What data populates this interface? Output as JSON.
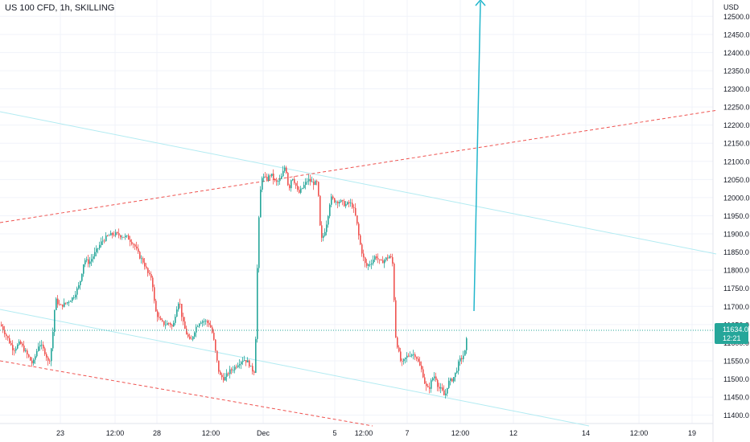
{
  "header": {
    "symbol_title": "US 100 CFD, 1h, SKILLING"
  },
  "price_axis": {
    "currency": "USD",
    "ticks": [
      "12500.0",
      "12450.0",
      "12400.0",
      "12350.0",
      "12300.0",
      "12250.0",
      "12200.0",
      "12150.0",
      "12100.0",
      "12050.0",
      "12000.0",
      "11950.0",
      "11900.0",
      "11850.0",
      "11800.0",
      "11750.0",
      "11700.0",
      "11650.0",
      "11600.0",
      "11550.0",
      "11500.0",
      "11450.0",
      "11400.0"
    ],
    "last_price_label": "11634.0",
    "countdown_label": "12:21"
  },
  "time_axis": {
    "ticks": [
      "23",
      "12:00",
      "28",
      "12:00",
      "Dec",
      "5",
      "12:00",
      "7",
      "12:00",
      "12",
      "14",
      "12:00",
      "19"
    ]
  },
  "colors": {
    "up": "#26a69a",
    "down": "#ef5350",
    "channel": "#b2ebf2",
    "dashed": "#ef5350",
    "arrow": "#22b6cc",
    "last_price": "#26a69a"
  },
  "chart_data": {
    "type": "candlestick",
    "title": "US 100 CFD, 1h, SKILLING",
    "ylabel": "USD",
    "ylim": [
      11377,
      12545
    ],
    "last_price": 11634.0,
    "close_path": [
      [
        0,
        11650
      ],
      [
        8,
        11615
      ],
      [
        16,
        11580
      ],
      [
        24,
        11600
      ],
      [
        32,
        11570
      ],
      [
        40,
        11540
      ],
      [
        48,
        11600
      ],
      [
        56,
        11570
      ],
      [
        60,
        11540
      ],
      [
        64,
        11600
      ],
      [
        68,
        11720
      ],
      [
        74,
        11700
      ],
      [
        82,
        11710
      ],
      [
        90,
        11725
      ],
      [
        98,
        11760
      ],
      [
        104,
        11830
      ],
      [
        110,
        11820
      ],
      [
        118,
        11850
      ],
      [
        126,
        11880
      ],
      [
        134,
        11895
      ],
      [
        142,
        11900
      ],
      [
        150,
        11895
      ],
      [
        158,
        11890
      ],
      [
        166,
        11870
      ],
      [
        172,
        11840
      ],
      [
        178,
        11820
      ],
      [
        184,
        11785
      ],
      [
        188,
        11780
      ],
      [
        192,
        11690
      ],
      [
        198,
        11660
      ],
      [
        204,
        11650
      ],
      [
        210,
        11655
      ],
      [
        214,
        11640
      ],
      [
        218,
        11690
      ],
      [
        222,
        11720
      ],
      [
        226,
        11660
      ],
      [
        230,
        11630
      ],
      [
        236,
        11600
      ],
      [
        242,
        11640
      ],
      [
        248,
        11660
      ],
      [
        254,
        11660
      ],
      [
        260,
        11650
      ],
      [
        264,
        11620
      ],
      [
        268,
        11560
      ],
      [
        272,
        11510
      ],
      [
        278,
        11500
      ],
      [
        284,
        11520
      ],
      [
        290,
        11530
      ],
      [
        296,
        11545
      ],
      [
        302,
        11555
      ],
      [
        308,
        11545
      ],
      [
        312,
        11525
      ],
      [
        316,
        11520
      ],
      [
        320,
        11900
      ],
      [
        324,
        12060
      ],
      [
        330,
        12050
      ],
      [
        336,
        12065
      ],
      [
        342,
        12040
      ],
      [
        348,
        12050
      ],
      [
        354,
        12090
      ],
      [
        358,
        12020
      ],
      [
        362,
        12060
      ],
      [
        366,
        12040
      ],
      [
        370,
        12010
      ],
      [
        376,
        12030
      ],
      [
        382,
        12050
      ],
      [
        388,
        12040
      ],
      [
        394,
        12040
      ],
      [
        398,
        11880
      ],
      [
        402,
        11900
      ],
      [
        406,
        11940
      ],
      [
        410,
        12000
      ],
      [
        416,
        11990
      ],
      [
        422,
        11990
      ],
      [
        428,
        11980
      ],
      [
        434,
        11985
      ],
      [
        438,
        11975
      ],
      [
        442,
        11940
      ],
      [
        446,
        11880
      ],
      [
        450,
        11840
      ],
      [
        454,
        11810
      ],
      [
        460,
        11820
      ],
      [
        466,
        11840
      ],
      [
        472,
        11820
      ],
      [
        478,
        11830
      ],
      [
        484,
        11840
      ],
      [
        488,
        11810
      ],
      [
        490,
        11630
      ],
      [
        494,
        11580
      ],
      [
        498,
        11540
      ],
      [
        504,
        11560
      ],
      [
        510,
        11570
      ],
      [
        516,
        11565
      ],
      [
        520,
        11540
      ],
      [
        524,
        11520
      ],
      [
        528,
        11480
      ],
      [
        532,
        11470
      ],
      [
        536,
        11500
      ],
      [
        540,
        11510
      ],
      [
        544,
        11475
      ],
      [
        548,
        11470
      ],
      [
        552,
        11450
      ],
      [
        556,
        11490
      ],
      [
        562,
        11500
      ],
      [
        566,
        11520
      ],
      [
        570,
        11550
      ],
      [
        574,
        11560
      ],
      [
        578,
        11580
      ],
      [
        580,
        11634
      ]
    ]
  }
}
